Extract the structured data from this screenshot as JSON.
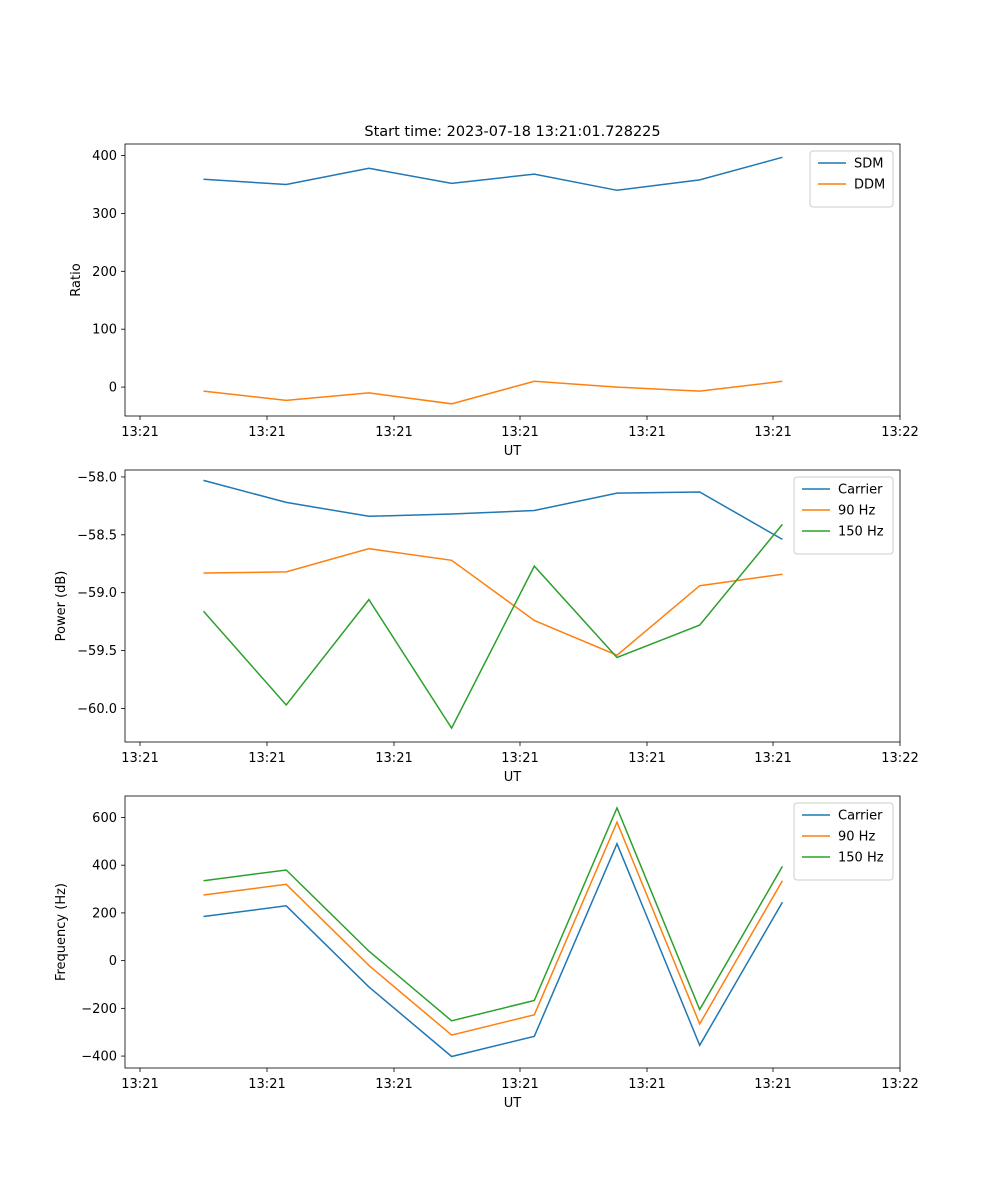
{
  "figure_title": "Start time: 2023-07-18 13:21:01.728225",
  "x_tick_labels": [
    "13:21",
    "13:21",
    "13:21",
    "13:21",
    "13:21",
    "13:21",
    "13:22"
  ],
  "chart_data": [
    {
      "type": "line",
      "title": "Start time: 2023-07-18 13:21:01.728225",
      "xlabel": "UT",
      "ylabel": "Ratio",
      "x": [
        1,
        2,
        3,
        4,
        5,
        6,
        7,
        8
      ],
      "ylim": [
        -50,
        420
      ],
      "yticks": [
        0,
        100,
        200,
        300,
        400
      ],
      "ytick_labels": [
        "0",
        "100",
        "200",
        "300",
        "400"
      ],
      "legend": "top-right",
      "series": [
        {
          "name": "SDM",
          "color": "#1f77b4",
          "values": [
            359,
            350,
            378,
            352,
            368,
            340,
            358,
            397
          ]
        },
        {
          "name": "DDM",
          "color": "#ff7f0e",
          "values": [
            -7,
            -23,
            -10,
            -29,
            10,
            0,
            -7,
            10
          ]
        }
      ]
    },
    {
      "type": "line",
      "title": "",
      "xlabel": "UT",
      "ylabel": "Power (dB)",
      "x": [
        1,
        2,
        3,
        4,
        5,
        6,
        7,
        8
      ],
      "ylim": [
        -60.29,
        -57.94
      ],
      "yticks": [
        -58.0,
        -58.5,
        -59.0,
        -59.5,
        -60.0
      ],
      "ytick_labels": [
        "−58.0",
        "−58.5",
        "−59.0",
        "−59.5",
        "−60.0"
      ],
      "legend": "top-right",
      "series": [
        {
          "name": "Carrier",
          "color": "#1f77b4",
          "values": [
            -58.03,
            -58.22,
            -58.34,
            -58.32,
            -58.29,
            -58.14,
            -58.13,
            -58.54
          ]
        },
        {
          "name": "90 Hz",
          "color": "#ff7f0e",
          "values": [
            -58.83,
            -58.82,
            -58.62,
            -58.72,
            -59.24,
            -59.54,
            -58.94,
            -58.84
          ]
        },
        {
          "name": "150 Hz",
          "color": "#2ca02c",
          "values": [
            -59.16,
            -59.97,
            -59.06,
            -60.17,
            -58.77,
            -59.56,
            -59.28,
            -58.41
          ]
        }
      ]
    },
    {
      "type": "line",
      "title": "",
      "xlabel": "UT",
      "ylabel": "Frequency (Hz)",
      "x": [
        1,
        2,
        3,
        4,
        5,
        6,
        7,
        8
      ],
      "ylim": [
        -450,
        690
      ],
      "yticks": [
        -400,
        -200,
        0,
        200,
        400,
        600
      ],
      "ytick_labels": [
        "−400",
        "−200",
        "0",
        "200",
        "400",
        "600"
      ],
      "legend": "top-right",
      "series": [
        {
          "name": "Carrier",
          "color": "#1f77b4",
          "values": [
            185,
            230,
            -110,
            -402,
            -317,
            490,
            -355,
            245
          ]
        },
        {
          "name": "90 Hz",
          "color": "#ff7f0e",
          "values": [
            275,
            320,
            -20,
            -312,
            -227,
            580,
            -265,
            335
          ]
        },
        {
          "name": "150 Hz",
          "color": "#2ca02c",
          "values": [
            335,
            380,
            40,
            -252,
            -167,
            640,
            -205,
            395
          ]
        }
      ]
    }
  ]
}
